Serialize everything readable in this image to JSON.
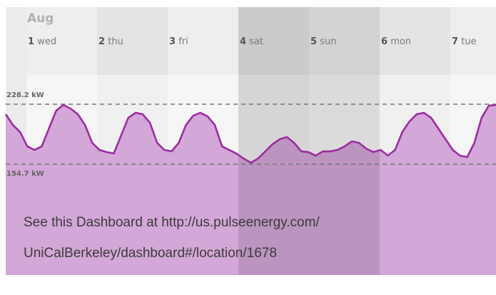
{
  "chart_data": {
    "type": "area",
    "month": "Aug",
    "days": [
      {
        "number": "1",
        "weekday": "wed",
        "weekend": false
      },
      {
        "number": "2",
        "weekday": "thu",
        "weekend": false
      },
      {
        "number": "3",
        "weekday": "fri",
        "weekend": false
      },
      {
        "number": "4",
        "weekday": "sat",
        "weekend": true
      },
      {
        "number": "5",
        "weekday": "sun",
        "weekend": true
      },
      {
        "number": "6",
        "weekday": "mon",
        "weekend": false
      },
      {
        "number": "7",
        "weekday": "tue",
        "weekend": false
      }
    ],
    "values": [
      216.0,
      202.8,
      194.1,
      176.6,
      172.2,
      176.6,
      198.5,
      220.3,
      227.3,
      222.9,
      216.0,
      202.8,
      180.9,
      172.2,
      169.6,
      167.8,
      189.7,
      211.6,
      217.7,
      216.0,
      205.5,
      180.9,
      172.2,
      170.5,
      180.9,
      202.8,
      214.2,
      217.7,
      213.3,
      202.8,
      176.6,
      172.2,
      167.8,
      161.7,
      156.5,
      161.7,
      170.5,
      179.2,
      185.3,
      188.0,
      180.9,
      170.5,
      169.6,
      165.2,
      170.5,
      170.5,
      172.2,
      176.6,
      182.7,
      180.9,
      173.9,
      169.6,
      172.2,
      165.2,
      172.2,
      194.1,
      207.2,
      216.0,
      217.7,
      211.6,
      198.5,
      185.3,
      172.2,
      165.2,
      163.5,
      180.9,
      211.6,
      226.5,
      227.3
    ],
    "color": "#9b2fa0",
    "fill_color": "#d3a7d7",
    "ylim": [
      19,
      264
    ],
    "yticks": [
      {
        "value": 228.2,
        "label": "228.2 kW"
      },
      {
        "value": 154.7,
        "label": "154.7 kW"
      }
    ],
    "grid": true,
    "caption": [
      "See this Dashboard at http://us.pulseenergy.com/",
      "UniCalBerkeley/dashboard#/location/1678"
    ]
  }
}
